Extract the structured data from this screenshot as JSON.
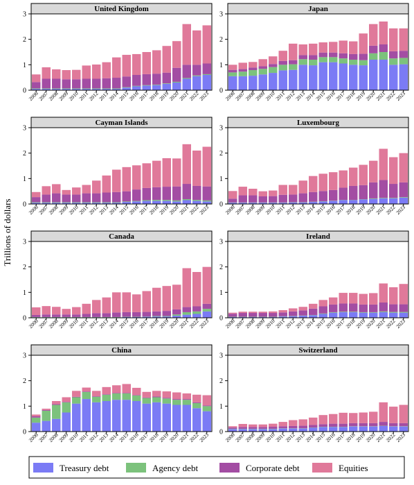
{
  "chart_data": {
    "type": "bar",
    "stacked": true,
    "ylabel": "Trillions of dollars",
    "ylim": [
      0,
      3
    ],
    "yticks": [
      0,
      1,
      2,
      3
    ],
    "categories": [
      "2006",
      "2007",
      "2008",
      "2009",
      "2010",
      "2011",
      "2012",
      "2013",
      "2014",
      "2015",
      "2016",
      "2017",
      "2018",
      "2019",
      "2020",
      "2021",
      "2022",
      "2023"
    ],
    "series_names": [
      "Treasury debt",
      "Agency debt",
      "Corporate debt",
      "Equities"
    ],
    "colors": {
      "Treasury debt": "#7b7bf5",
      "Agency debt": "#7cc27c",
      "Corporate debt": "#a34da3",
      "Equities": "#e0799a"
    },
    "legend": {
      "position": "bottom",
      "entries": [
        "Treasury debt",
        "Agency debt",
        "Corporate debt",
        "Equities"
      ]
    },
    "panels": [
      {
        "title": "United Kingdom",
        "series": [
          {
            "name": "Treasury debt",
            "values": [
              0.05,
              0.05,
              0.05,
              0.05,
              0.05,
              0.05,
              0.05,
              0.05,
              0.05,
              0.1,
              0.15,
              0.18,
              0.2,
              0.25,
              0.3,
              0.45,
              0.55,
              0.6
            ]
          },
          {
            "name": "Agency debt",
            "values": [
              0.02,
              0.02,
              0.02,
              0.02,
              0.02,
              0.02,
              0.02,
              0.02,
              0.02,
              0.02,
              0.02,
              0.02,
              0.02,
              0.02,
              0.03,
              0.03,
              0.03,
              0.03
            ]
          },
          {
            "name": "Corporate debt",
            "values": [
              0.25,
              0.38,
              0.38,
              0.36,
              0.36,
              0.38,
              0.38,
              0.4,
              0.42,
              0.42,
              0.43,
              0.43,
              0.43,
              0.42,
              0.55,
              0.52,
              0.42,
              0.42
            ]
          },
          {
            "name": "Equities",
            "values": [
              0.3,
              0.45,
              0.37,
              0.36,
              0.37,
              0.52,
              0.56,
              0.63,
              0.8,
              0.85,
              0.82,
              0.87,
              0.92,
              1.05,
              1.05,
              1.6,
              1.35,
              1.5
            ]
          }
        ]
      },
      {
        "title": "Japan",
        "series": [
          {
            "name": "Treasury debt",
            "values": [
              0.55,
              0.55,
              0.57,
              0.62,
              0.68,
              0.78,
              0.8,
              1.0,
              0.98,
              1.1,
              1.1,
              1.05,
              1.0,
              0.98,
              1.2,
              1.2,
              1.0,
              1.02
            ]
          },
          {
            "name": "Agency debt",
            "values": [
              0.15,
              0.18,
              0.22,
              0.22,
              0.23,
              0.22,
              0.22,
              0.22,
              0.22,
              0.2,
              0.2,
              0.2,
              0.2,
              0.2,
              0.25,
              0.3,
              0.25,
              0.25
            ]
          },
          {
            "name": "Corporate debt",
            "values": [
              0.1,
              0.1,
              0.1,
              0.1,
              0.12,
              0.15,
              0.16,
              0.16,
              0.18,
              0.18,
              0.18,
              0.2,
              0.22,
              0.25,
              0.3,
              0.3,
              0.28,
              0.28
            ]
          },
          {
            "name": "Equities",
            "values": [
              0.2,
              0.25,
              0.22,
              0.28,
              0.3,
              0.4,
              0.65,
              0.42,
              0.45,
              0.4,
              0.42,
              0.5,
              0.5,
              0.8,
              0.85,
              0.9,
              0.9,
              0.88
            ]
          }
        ]
      },
      {
        "title": "Cayman Islands",
        "series": [
          {
            "name": "Treasury debt",
            "values": [
              0.05,
              0.05,
              0.05,
              0.05,
              0.05,
              0.05,
              0.05,
              0.05,
              0.05,
              0.08,
              0.1,
              0.12,
              0.12,
              0.12,
              0.1,
              0.15,
              0.12,
              0.1
            ]
          },
          {
            "name": "Agency debt",
            "values": [
              0.02,
              0.02,
              0.02,
              0.02,
              0.02,
              0.02,
              0.02,
              0.02,
              0.02,
              0.02,
              0.02,
              0.03,
              0.04,
              0.04,
              0.04,
              0.04,
              0.04,
              0.04
            ]
          },
          {
            "name": "Corporate debt",
            "values": [
              0.2,
              0.3,
              0.35,
              0.3,
              0.3,
              0.35,
              0.35,
              0.38,
              0.4,
              0.4,
              0.45,
              0.48,
              0.5,
              0.52,
              0.55,
              0.6,
              0.55,
              0.55
            ]
          },
          {
            "name": "Equities",
            "values": [
              0.2,
              0.33,
              0.36,
              0.18,
              0.28,
              0.33,
              0.5,
              0.67,
              0.88,
              0.95,
              0.95,
              0.97,
              1.04,
              1.12,
              1.1,
              1.56,
              1.39,
              1.56
            ]
          }
        ]
      },
      {
        "title": "Luxembourg",
        "series": [
          {
            "name": "Treasury debt",
            "values": [
              0.05,
              0.05,
              0.05,
              0.05,
              0.05,
              0.05,
              0.06,
              0.06,
              0.08,
              0.1,
              0.12,
              0.15,
              0.15,
              0.18,
              0.2,
              0.22,
              0.22,
              0.25
            ]
          },
          {
            "name": "Agency debt",
            "values": [
              0.01,
              0.01,
              0.01,
              0.01,
              0.01,
              0.01,
              0.01,
              0.01,
              0.01,
              0.01,
              0.01,
              0.01,
              0.01,
              0.01,
              0.02,
              0.02,
              0.02,
              0.02
            ]
          },
          {
            "name": "Corporate debt",
            "values": [
              0.15,
              0.28,
              0.28,
              0.24,
              0.25,
              0.3,
              0.3,
              0.35,
              0.38,
              0.4,
              0.42,
              0.48,
              0.55,
              0.55,
              0.63,
              0.7,
              0.55,
              0.58
            ]
          },
          {
            "name": "Equities",
            "values": [
              0.3,
              0.34,
              0.26,
              0.2,
              0.22,
              0.39,
              0.38,
              0.5,
              0.63,
              0.68,
              0.7,
              0.68,
              0.72,
              0.8,
              0.85,
              1.23,
              1.05,
              1.15
            ]
          }
        ]
      },
      {
        "title": "Canada",
        "series": [
          {
            "name": "Treasury debt",
            "values": [
              0.02,
              0.02,
              0.02,
              0.02,
              0.02,
              0.02,
              0.02,
              0.02,
              0.02,
              0.03,
              0.03,
              0.04,
              0.05,
              0.05,
              0.08,
              0.12,
              0.15,
              0.25
            ]
          },
          {
            "name": "Agency debt",
            "values": [
              0.01,
              0.01,
              0.01,
              0.01,
              0.01,
              0.01,
              0.01,
              0.01,
              0.01,
              0.01,
              0.01,
              0.01,
              0.02,
              0.02,
              0.05,
              0.1,
              0.1,
              0.1
            ]
          },
          {
            "name": "Corporate debt",
            "values": [
              0.08,
              0.1,
              0.1,
              0.1,
              0.1,
              0.12,
              0.15,
              0.15,
              0.18,
              0.18,
              0.18,
              0.18,
              0.18,
              0.2,
              0.2,
              0.2,
              0.2,
              0.2
            ]
          },
          {
            "name": "Equities",
            "values": [
              0.3,
              0.33,
              0.3,
              0.22,
              0.29,
              0.4,
              0.52,
              0.62,
              0.79,
              0.78,
              0.7,
              0.82,
              0.93,
              0.98,
              0.97,
              1.53,
              1.35,
              1.45
            ]
          }
        ]
      },
      {
        "title": "Ireland",
        "series": [
          {
            "name": "Treasury debt",
            "values": [
              0.03,
              0.03,
              0.03,
              0.03,
              0.03,
              0.05,
              0.06,
              0.08,
              0.1,
              0.15,
              0.2,
              0.22,
              0.22,
              0.2,
              0.2,
              0.22,
              0.2,
              0.2
            ]
          },
          {
            "name": "Agency debt",
            "values": [
              0.01,
              0.01,
              0.01,
              0.01,
              0.01,
              0.01,
              0.01,
              0.01,
              0.01,
              0.02,
              0.02,
              0.02,
              0.02,
              0.02,
              0.02,
              0.03,
              0.03,
              0.03
            ]
          },
          {
            "name": "Corporate debt",
            "values": [
              0.12,
              0.15,
              0.15,
              0.15,
              0.15,
              0.15,
              0.18,
              0.2,
              0.25,
              0.28,
              0.3,
              0.32,
              0.32,
              0.3,
              0.3,
              0.35,
              0.3,
              0.3
            ]
          },
          {
            "name": "Equities",
            "values": [
              0.04,
              0.05,
              0.05,
              0.05,
              0.06,
              0.09,
              0.12,
              0.14,
              0.19,
              0.25,
              0.28,
              0.42,
              0.42,
              0.42,
              0.45,
              0.75,
              0.67,
              0.8
            ]
          }
        ]
      },
      {
        "title": "China",
        "series": [
          {
            "name": "Treasury debt",
            "values": [
              0.35,
              0.42,
              0.5,
              0.75,
              1.1,
              1.28,
              1.15,
              1.2,
              1.25,
              1.25,
              1.2,
              1.1,
              1.15,
              1.1,
              1.05,
              1.05,
              0.92,
              0.8
            ]
          },
          {
            "name": "Agency debt",
            "values": [
              0.2,
              0.4,
              0.55,
              0.4,
              0.25,
              0.28,
              0.22,
              0.25,
              0.25,
              0.25,
              0.22,
              0.22,
              0.2,
              0.2,
              0.2,
              0.2,
              0.2,
              0.2
            ]
          },
          {
            "name": "Corporate debt",
            "values": [
              0.05,
              0.03,
              0.03,
              0.02,
              0.02,
              0.02,
              0.02,
              0.02,
              0.02,
              0.02,
              0.02,
              0.02,
              0.03,
              0.03,
              0.03,
              0.03,
              0.03,
              0.03
            ]
          },
          {
            "name": "Equities",
            "values": [
              0.07,
              0.05,
              0.12,
              0.18,
              0.23,
              0.15,
              0.21,
              0.28,
              0.3,
              0.35,
              0.28,
              0.22,
              0.22,
              0.25,
              0.26,
              0.22,
              0.3,
              0.4
            ]
          }
        ]
      },
      {
        "title": "Switzerland",
        "series": [
          {
            "name": "Treasury debt",
            "values": [
              0.1,
              0.1,
              0.1,
              0.1,
              0.1,
              0.12,
              0.12,
              0.12,
              0.15,
              0.18,
              0.18,
              0.18,
              0.2,
              0.2,
              0.2,
              0.22,
              0.2,
              0.2
            ]
          },
          {
            "name": "Agency debt",
            "values": [
              0.01,
              0.01,
              0.01,
              0.01,
              0.01,
              0.01,
              0.01,
              0.01,
              0.01,
              0.01,
              0.01,
              0.01,
              0.01,
              0.01,
              0.01,
              0.01,
              0.01,
              0.01
            ]
          },
          {
            "name": "Corporate debt",
            "values": [
              0.05,
              0.07,
              0.07,
              0.07,
              0.08,
              0.08,
              0.09,
              0.1,
              0.1,
              0.1,
              0.12,
              0.12,
              0.12,
              0.12,
              0.12,
              0.15,
              0.12,
              0.12
            ]
          },
          {
            "name": "Equities",
            "values": [
              0.05,
              0.12,
              0.1,
              0.1,
              0.12,
              0.17,
              0.23,
              0.25,
              0.29,
              0.36,
              0.38,
              0.43,
              0.4,
              0.42,
              0.45,
              0.77,
              0.65,
              0.72
            ]
          }
        ]
      }
    ]
  }
}
